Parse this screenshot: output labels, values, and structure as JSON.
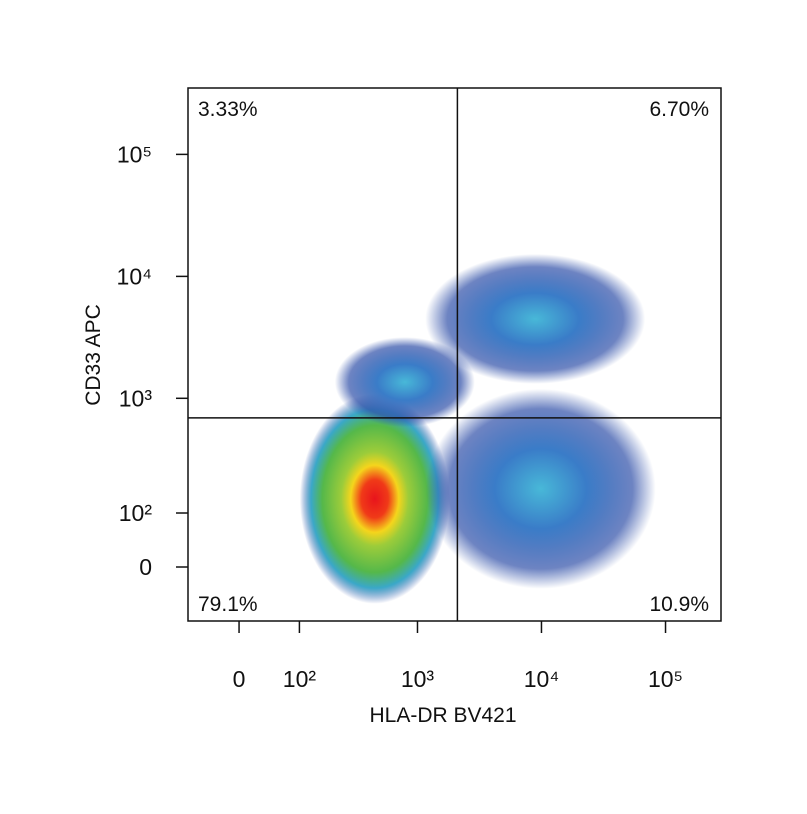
{
  "chart_data": {
    "type": "density",
    "x_label": "HLA-DR BV421",
    "y_label": "CD33 APC",
    "xlim": [
      -80,
      280000
    ],
    "ylim": [
      -100,
      350000
    ],
    "xticks": [
      0,
      {
        "value": 100,
        "label": "10²"
      },
      {
        "value": 1000,
        "label": "10³"
      },
      {
        "value": 10000,
        "label": "10⁴"
      },
      {
        "value": 100000,
        "label": "10⁵"
      }
    ],
    "yticks": [
      0,
      {
        "value": 100,
        "label": "10²"
      },
      {
        "value": 1000,
        "label": "10³"
      },
      {
        "value": 10000,
        "label": "10⁴"
      },
      {
        "value": 100000,
        "label": "10⁵"
      }
    ],
    "gates": {
      "x": 2100,
      "y": 690
    },
    "quadrants": [
      {
        "corner": "top-left",
        "value": 3.33,
        "label": "3.33%"
      },
      {
        "corner": "top-right",
        "value": 6.7,
        "label": "6.70%"
      },
      {
        "corner": "bottom-left",
        "value": 79.1,
        "label": "79.1%"
      },
      {
        "corner": "bottom-right",
        "value": 10.9,
        "label": "10.9%"
      }
    ],
    "populations": [
      {
        "x": 450,
        "y": 172
      },
      {
        "x": 790,
        "y": 1360
      },
      {
        "x": 8900,
        "y": 4480
      },
      {
        "x": 9850,
        "y": 172
      }
    ]
  }
}
